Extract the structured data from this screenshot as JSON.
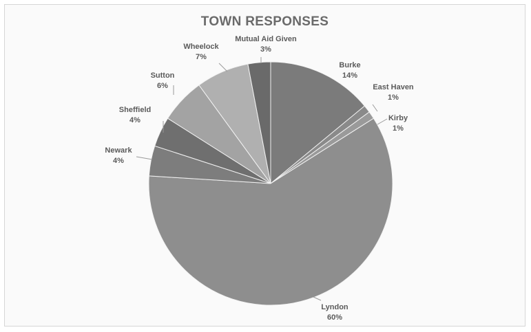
{
  "chart_data": {
    "type": "pie",
    "title": "TOWN RESPONSES",
    "slices": [
      {
        "label": "Burke",
        "percent_label": "14%",
        "value": 14,
        "color": "#7b7b7b"
      },
      {
        "label": "East Haven",
        "percent_label": "1%",
        "value": 1,
        "color": "#8a8a8a"
      },
      {
        "label": "Kirby",
        "percent_label": "1%",
        "value": 1,
        "color": "#9a9a9a"
      },
      {
        "label": "Lyndon",
        "percent_label": "60%",
        "value": 60,
        "color": "#8e8e8e"
      },
      {
        "label": "Newark",
        "percent_label": "4%",
        "value": 4,
        "color": "#7d7d7d"
      },
      {
        "label": "Sheffield",
        "percent_label": "4%",
        "value": 4,
        "color": "#6f6f6f"
      },
      {
        "label": "Sutton",
        "percent_label": "6%",
        "value": 6,
        "color": "#a3a3a3"
      },
      {
        "label": "Wheelock",
        "percent_label": "7%",
        "value": 7,
        "color": "#b0b0b0"
      },
      {
        "label": "Mutual Aid Given",
        "percent_label": "3%",
        "value": 3,
        "color": "#6a6a6a"
      }
    ]
  }
}
